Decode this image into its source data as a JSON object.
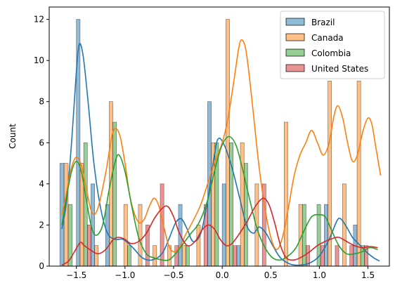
{
  "chart_data": {
    "type": "bar",
    "subtype": "histogram-with-kde",
    "title": "",
    "xlabel": "",
    "ylabel": "Count",
    "xlim": [
      -1.78,
      1.72
    ],
    "ylim": [
      0,
      12.6
    ],
    "x_ticks": [
      -1.5,
      -1.0,
      -0.5,
      0.0,
      0.5,
      1.0,
      1.5
    ],
    "x_tick_labels": [
      "−1.5",
      "−1.0",
      "−0.5",
      "0.0",
      "0.5",
      "1.0",
      "1.5"
    ],
    "y_ticks": [
      0,
      2,
      4,
      6,
      8,
      10,
      12
    ],
    "y_tick_labels": [
      "0",
      "2",
      "4",
      "6",
      "8",
      "10",
      "12"
    ],
    "grid": false,
    "legend_position": "top-right",
    "bins": [
      -1.67,
      -1.5,
      -1.35,
      -1.2,
      -1.05,
      -0.9,
      -0.75,
      -0.6,
      -0.45,
      -0.3,
      -0.15,
      0.0,
      0.15,
      0.3,
      0.45,
      0.6,
      0.75,
      0.9,
      1.05,
      1.2,
      1.35,
      1.5
    ],
    "series": [
      {
        "name": "Brazil",
        "color": "#1f77b4",
        "counts": [
          5,
          12,
          4,
          3,
          0,
          0,
          0,
          0,
          3,
          0,
          8,
          4,
          1,
          0,
          0,
          0,
          0,
          0,
          3,
          0,
          2,
          1
        ],
        "kde": [
          [
            -1.65,
            1.8
          ],
          [
            -1.6,
            3.2
          ],
          [
            -1.55,
            6.0
          ],
          [
            -1.5,
            9.5
          ],
          [
            -1.47,
            10.8
          ],
          [
            -1.43,
            10.2
          ],
          [
            -1.38,
            8.0
          ],
          [
            -1.32,
            5.0
          ],
          [
            -1.25,
            2.8
          ],
          [
            -1.18,
            1.6
          ],
          [
            -1.1,
            1.3
          ],
          [
            -1.02,
            1.3
          ],
          [
            -0.92,
            0.9
          ],
          [
            -0.82,
            0.4
          ],
          [
            -0.72,
            0.3
          ],
          [
            -0.62,
            0.6
          ],
          [
            -0.55,
            1.3
          ],
          [
            -0.48,
            2.1
          ],
          [
            -0.42,
            2.3
          ],
          [
            -0.36,
            1.8
          ],
          [
            -0.3,
            1.2
          ],
          [
            -0.22,
            1.6
          ],
          [
            -0.15,
            3.2
          ],
          [
            -0.08,
            5.4
          ],
          [
            -0.04,
            6.2
          ],
          [
            0.02,
            5.9
          ],
          [
            0.1,
            4.8
          ],
          [
            0.18,
            3.3
          ],
          [
            0.25,
            2.0
          ],
          [
            0.32,
            1.6
          ],
          [
            0.38,
            1.9
          ],
          [
            0.45,
            1.6
          ],
          [
            0.52,
            1.0
          ],
          [
            0.6,
            0.4
          ],
          [
            0.7,
            0.1
          ],
          [
            0.8,
            0.05
          ],
          [
            0.9,
            0.15
          ],
          [
            1.0,
            0.5
          ],
          [
            1.1,
            1.3
          ],
          [
            1.18,
            2.2
          ],
          [
            1.22,
            2.3
          ],
          [
            1.28,
            1.9
          ],
          [
            1.34,
            1.4
          ],
          [
            1.4,
            1.1
          ],
          [
            1.48,
            0.7
          ],
          [
            1.56,
            0.4
          ],
          [
            1.62,
            0.25
          ]
        ]
      },
      {
        "name": "Canada",
        "color": "#ff7f0e",
        "counts": [
          5,
          5,
          1,
          8,
          3,
          3,
          1,
          1,
          1,
          2,
          6,
          12,
          6,
          4,
          0,
          7,
          3,
          0,
          9,
          4,
          9,
          0
        ],
        "kde": [
          [
            -1.65,
            2.5
          ],
          [
            -1.6,
            3.6
          ],
          [
            -1.55,
            4.8
          ],
          [
            -1.5,
            5.3
          ],
          [
            -1.45,
            4.9
          ],
          [
            -1.4,
            3.8
          ],
          [
            -1.34,
            2.6
          ],
          [
            -1.28,
            2.8
          ],
          [
            -1.2,
            4.5
          ],
          [
            -1.14,
            6.2
          ],
          [
            -1.1,
            6.7
          ],
          [
            -1.05,
            6.3
          ],
          [
            -1.0,
            5.0
          ],
          [
            -0.95,
            3.4
          ],
          [
            -0.9,
            2.5
          ],
          [
            -0.85,
            2.1
          ],
          [
            -0.8,
            2.3
          ],
          [
            -0.75,
            2.9
          ],
          [
            -0.7,
            3.3
          ],
          [
            -0.65,
            2.9
          ],
          [
            -0.6,
            1.9
          ],
          [
            -0.55,
            1.0
          ],
          [
            -0.5,
            0.7
          ],
          [
            -0.44,
            0.9
          ],
          [
            -0.38,
            1.5
          ],
          [
            -0.3,
            2.2
          ],
          [
            -0.22,
            3.0
          ],
          [
            -0.15,
            4.0
          ],
          [
            -0.08,
            5.0
          ],
          [
            0.0,
            6.0
          ],
          [
            0.06,
            7.2
          ],
          [
            0.12,
            9.0
          ],
          [
            0.17,
            10.6
          ],
          [
            0.2,
            11.0
          ],
          [
            0.24,
            10.6
          ],
          [
            0.28,
            9.2
          ],
          [
            0.33,
            7.0
          ],
          [
            0.38,
            4.8
          ],
          [
            0.44,
            2.8
          ],
          [
            0.5,
            1.4
          ],
          [
            0.56,
            0.8
          ],
          [
            0.62,
            1.4
          ],
          [
            0.68,
            2.8
          ],
          [
            0.74,
            4.4
          ],
          [
            0.8,
            5.4
          ],
          [
            0.86,
            6.0
          ],
          [
            0.92,
            6.6
          ],
          [
            0.98,
            6.0
          ],
          [
            1.04,
            5.4
          ],
          [
            1.1,
            6.0
          ],
          [
            1.15,
            7.3
          ],
          [
            1.19,
            7.8
          ],
          [
            1.24,
            7.2
          ],
          [
            1.29,
            6.0
          ],
          [
            1.34,
            5.1
          ],
          [
            1.39,
            5.4
          ],
          [
            1.45,
            6.6
          ],
          [
            1.5,
            7.2
          ],
          [
            1.54,
            6.9
          ],
          [
            1.58,
            5.8
          ],
          [
            1.63,
            4.4
          ]
        ]
      },
      {
        "name": "Colombia",
        "color": "#2ca02c",
        "counts": [
          3,
          6,
          0,
          7,
          1,
          0,
          0,
          0,
          1,
          0,
          6,
          6,
          5,
          0,
          0,
          0,
          3,
          3,
          0,
          0,
          1,
          1
        ],
        "kde": [
          [
            -1.65,
            2.0
          ],
          [
            -1.6,
            3.4
          ],
          [
            -1.55,
            4.6
          ],
          [
            -1.5,
            5.1
          ],
          [
            -1.45,
            4.6
          ],
          [
            -1.4,
            3.3
          ],
          [
            -1.35,
            2.0
          ],
          [
            -1.3,
            1.5
          ],
          [
            -1.23,
            2.0
          ],
          [
            -1.16,
            3.8
          ],
          [
            -1.1,
            5.1
          ],
          [
            -1.06,
            5.4
          ],
          [
            -1.0,
            4.6
          ],
          [
            -0.93,
            2.9
          ],
          [
            -0.86,
            1.4
          ],
          [
            -0.78,
            0.6
          ],
          [
            -0.7,
            0.4
          ],
          [
            -0.62,
            0.3
          ],
          [
            -0.55,
            0.3
          ],
          [
            -0.48,
            0.6
          ],
          [
            -0.4,
            1.1
          ],
          [
            -0.32,
            1.6
          ],
          [
            -0.24,
            2.1
          ],
          [
            -0.15,
            3.2
          ],
          [
            -0.07,
            4.8
          ],
          [
            0.0,
            5.9
          ],
          [
            0.07,
            6.3
          ],
          [
            0.14,
            5.9
          ],
          [
            0.2,
            4.9
          ],
          [
            0.28,
            3.3
          ],
          [
            0.36,
            1.8
          ],
          [
            0.44,
            0.9
          ],
          [
            0.52,
            0.4
          ],
          [
            0.6,
            0.3
          ],
          [
            0.68,
            0.5
          ],
          [
            0.76,
            0.9
          ],
          [
            0.84,
            1.7
          ],
          [
            0.92,
            2.4
          ],
          [
            1.0,
            2.5
          ],
          [
            1.06,
            2.4
          ],
          [
            1.12,
            1.8
          ],
          [
            1.2,
            1.0
          ],
          [
            1.28,
            0.6
          ],
          [
            1.36,
            0.6
          ],
          [
            1.44,
            0.7
          ],
          [
            1.52,
            0.9
          ],
          [
            1.6,
            0.8
          ]
        ]
      },
      {
        "name": "United States",
        "color": "#d62728",
        "counts": [
          0,
          2,
          0,
          0,
          0,
          2,
          4,
          1,
          0,
          3,
          0,
          1,
          0,
          4,
          0,
          0,
          1,
          1,
          1,
          1,
          1,
          1
        ],
        "kde": [
          [
            -1.65,
            0.05
          ],
          [
            -1.58,
            0.25
          ],
          [
            -1.52,
            0.7
          ],
          [
            -1.46,
            1.15
          ],
          [
            -1.42,
            1.0
          ],
          [
            -1.36,
            0.8
          ],
          [
            -1.28,
            0.6
          ],
          [
            -1.2,
            0.8
          ],
          [
            -1.12,
            1.3
          ],
          [
            -1.06,
            1.4
          ],
          [
            -1.0,
            1.3
          ],
          [
            -0.94,
            1.1
          ],
          [
            -0.86,
            1.2
          ],
          [
            -0.78,
            1.6
          ],
          [
            -0.7,
            2.3
          ],
          [
            -0.62,
            2.8
          ],
          [
            -0.56,
            2.9
          ],
          [
            -0.5,
            2.4
          ],
          [
            -0.44,
            1.6
          ],
          [
            -0.36,
            1.0
          ],
          [
            -0.28,
            1.2
          ],
          [
            -0.2,
            1.8
          ],
          [
            -0.14,
            2.0
          ],
          [
            -0.08,
            1.8
          ],
          [
            -0.02,
            1.3
          ],
          [
            0.04,
            1.0
          ],
          [
            0.1,
            1.1
          ],
          [
            0.18,
            1.6
          ],
          [
            0.26,
            2.2
          ],
          [
            0.34,
            2.9
          ],
          [
            0.42,
            3.3
          ],
          [
            0.48,
            3.0
          ],
          [
            0.54,
            2.1
          ],
          [
            0.6,
            1.0
          ],
          [
            0.66,
            0.4
          ],
          [
            0.74,
            0.3
          ],
          [
            0.82,
            0.45
          ],
          [
            0.9,
            0.7
          ],
          [
            0.98,
            1.0
          ],
          [
            1.06,
            1.2
          ],
          [
            1.14,
            1.35
          ],
          [
            1.2,
            1.4
          ],
          [
            1.28,
            1.2
          ],
          [
            1.36,
            1.0
          ],
          [
            1.44,
            0.9
          ],
          [
            1.52,
            0.95
          ],
          [
            1.6,
            0.9
          ]
        ]
      }
    ]
  }
}
